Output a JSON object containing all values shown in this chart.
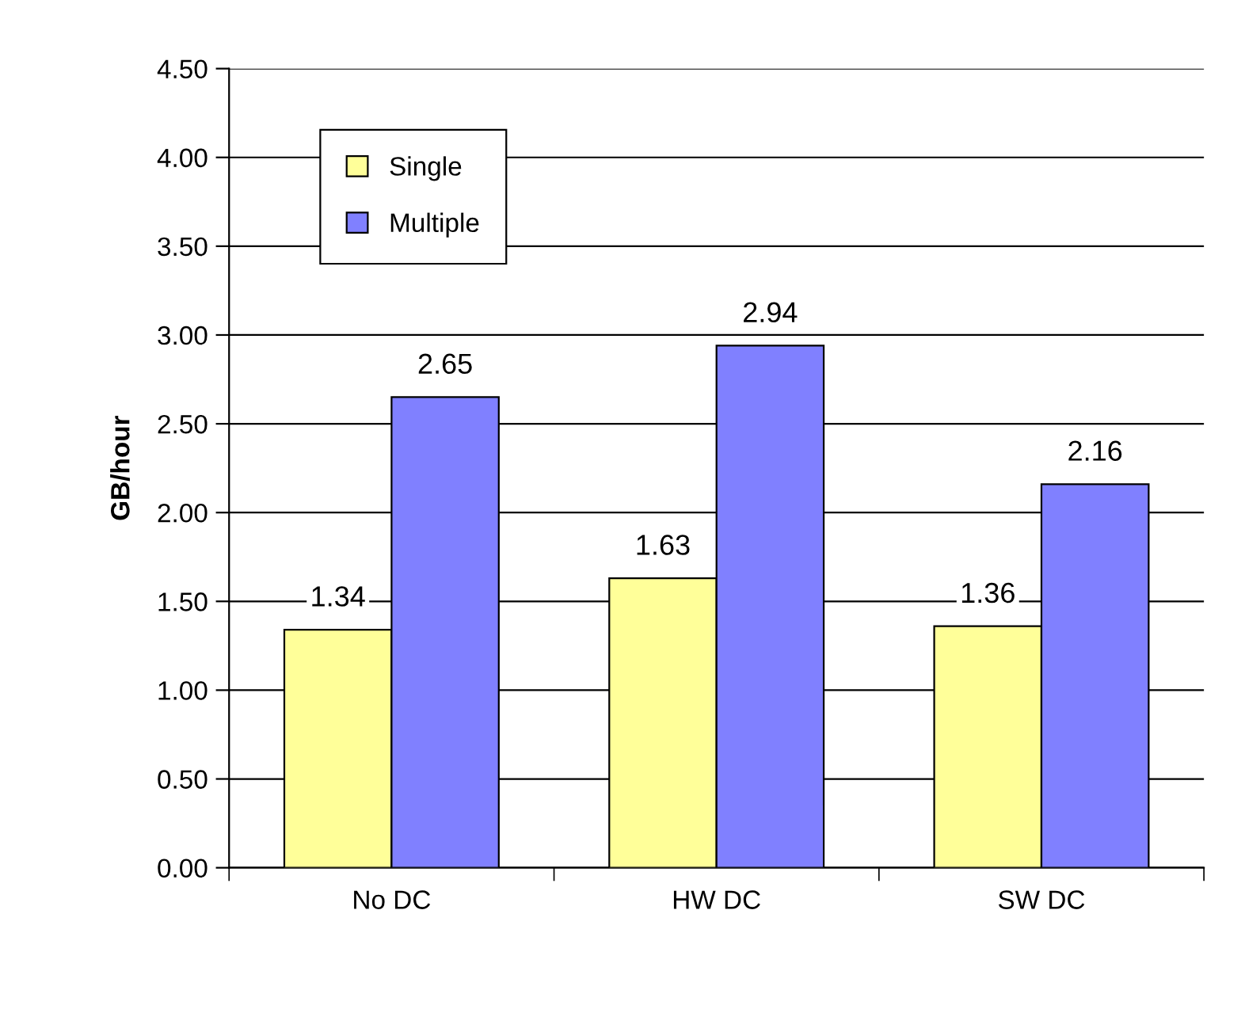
{
  "chart_data": {
    "type": "bar",
    "ylabel": "GB/hour",
    "categories": [
      "No DC",
      "HW DC",
      "SW DC"
    ],
    "series": [
      {
        "name": "Single",
        "color": "#ffff99",
        "values": [
          1.34,
          1.63,
          1.36
        ]
      },
      {
        "name": "Multiple",
        "color": "#8080ff",
        "values": [
          2.65,
          2.94,
          2.16
        ]
      }
    ],
    "ylim": [
      0,
      4.5
    ],
    "yticks": [
      {
        "value": 0,
        "label": "0.00"
      },
      {
        "value": 0.5,
        "label": "0.50"
      },
      {
        "value": 1,
        "label": "1.00"
      },
      {
        "value": 1.5,
        "label": "1.50"
      },
      {
        "value": 2,
        "label": "2.00"
      },
      {
        "value": 2.5,
        "label": "2.50"
      },
      {
        "value": 3,
        "label": "3.00"
      },
      {
        "value": 3.5,
        "label": "3.50"
      },
      {
        "value": 4,
        "label": "4.00"
      },
      {
        "value": 4.5,
        "label": "4.50"
      }
    ],
    "grid": "y",
    "legend": "top left",
    "data_labels": true
  }
}
